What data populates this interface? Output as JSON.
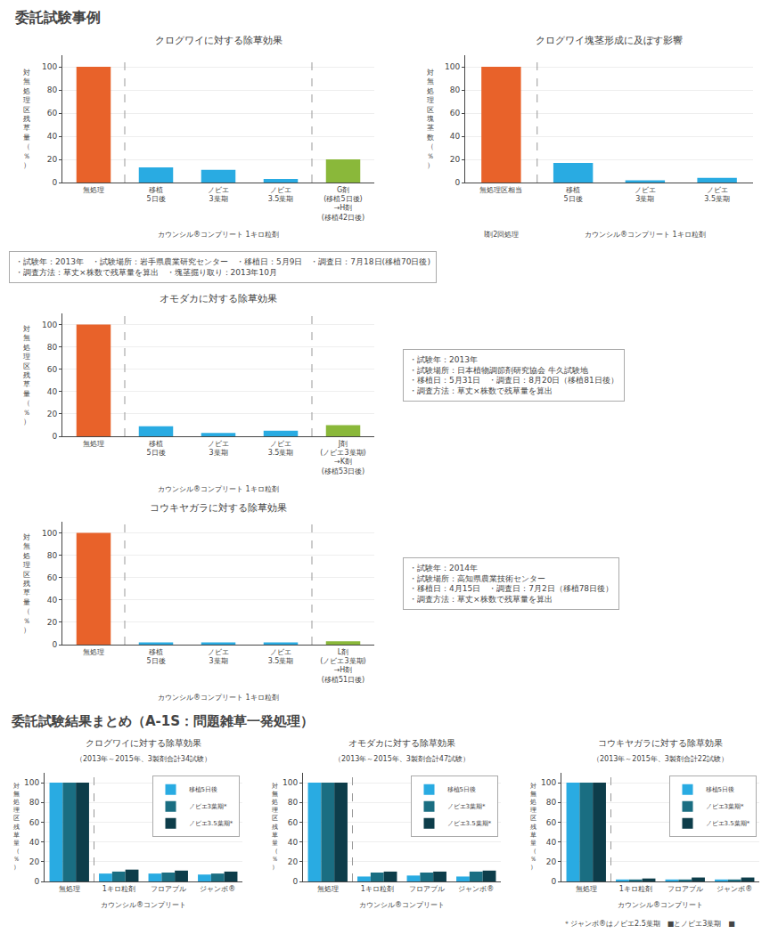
{
  "chart_data": [
    {
      "type": "bar",
      "title": "クログワイに対する除草効果",
      "categories": [
        "無処理",
        "移植\n5日後",
        "ノビエ\n3葉期",
        "ノビエ\n3.5葉期",
        "G剤\n(移植5日後)\n→H剤\n(移植42日後)"
      ],
      "values": [
        100,
        13,
        11,
        3,
        20
      ],
      "colors": [
        "#e8622a",
        "#29abe2",
        "#29abe2",
        "#29abe2",
        "#8ab83a"
      ],
      "ylabel": "対\n無\n処\n理\n区\n残\n草\n量\n（\n％\n）",
      "xlabel": "カウンシル®コンプリート 1キロ粒剤",
      "ylim": [
        0,
        110
      ],
      "yticks": [
        0,
        20,
        40,
        60,
        80,
        100
      ],
      "grid": true,
      "annotations": [
        {
          "text": "委託試験事例"
        }
      ]
    },
    {
      "type": "bar",
      "title": "クログワイ塊茎形成に及ぼす影響",
      "categories": [
        "無処理区相当",
        "移植\n5日後",
        "ノビエ\n3葉期",
        "ノビエ\n3.5葉期"
      ],
      "values": [
        100,
        17,
        2,
        4
      ],
      "colors": [
        "#e8622a",
        "#29abe2",
        "#29abe2",
        "#29abe2"
      ],
      "ylabel": "対\n無\n処\n理\n区\n塊\n茎\n数\n（\n％\n）",
      "ylim": [
        0,
        110
      ],
      "yticks": [
        0,
        20,
        40,
        60,
        80,
        100
      ],
      "grid": true,
      "annotations": [
        {
          "text": "I剤2回処理",
          "x": 0
        },
        {
          "text": "カウンシル®コンプリート 1キロ粒剤",
          "x": 2
        },
        {
          "text": "・試験年：2013年　・試験場所：岩手県農業研究センター　・移植日：5月9日　・調査日：7月18日(移植70日後)\n・調査方法：草丈×株数で残草量を算出　・塊茎掘り取り：2013年10月"
        }
      ]
    },
    {
      "type": "bar",
      "title": "オモダカに対する除草効果",
      "categories": [
        "無処理",
        "移植\n5日後",
        "ノビエ\n3葉期",
        "ノビエ\n3.5葉期",
        "J剤\n(ノビエ3葉期)\n→K剤\n(移植53日後)"
      ],
      "values": [
        100,
        9,
        3,
        5,
        10
      ],
      "colors": [
        "#e8622a",
        "#29abe2",
        "#29abe2",
        "#29abe2",
        "#8ab83a"
      ],
      "ylabel": "対\n無\n処\n理\n区\n残\n草\n量\n（\n％\n）",
      "xlabel": "カウンシル®コンプリート 1キロ粒剤",
      "ylim": [
        0,
        110
      ],
      "yticks": [
        0,
        20,
        40,
        60,
        80,
        100
      ],
      "grid": true,
      "annotations": [
        {
          "text": "・試験年：2013年\n・試験場所：日本植物調節剤研究協会 牛久試験地\n・移植日：5月31日　・調査日：8月20日（移植81日後）\n・調査方法：草丈×株数で残草量を算出"
        }
      ]
    },
    {
      "type": "bar",
      "title": "コウキヤガラに対する除草効果",
      "categories": [
        "無処理",
        "移植\n5日後",
        "ノビエ\n3葉期",
        "ノビエ\n3.5葉期",
        "L剤\n(ノビエ3葉期)\n→H剤\n(移植51日後)"
      ],
      "values": [
        100,
        2,
        2,
        2,
        3
      ],
      "colors": [
        "#e8622a",
        "#29abe2",
        "#29abe2",
        "#29abe2",
        "#8ab83a"
      ],
      "ylabel": "対\n無\n処\n理\n区\n残\n草\n量\n（\n％\n）",
      "xlabel": "カウンシル®コンプリート 1キロ粒剤",
      "ylim": [
        0,
        110
      ],
      "yticks": [
        0,
        20,
        40,
        60,
        80,
        100
      ],
      "grid": true,
      "annotations": [
        {
          "text": "・試験年：2014年\n・試験場所：高知県農業技術センター\n・移植日：4月15日　・調査日：7月2日（移植78日後）\n・調査方法：草丈×株数で残草量を算出"
        }
      ]
    },
    {
      "type": "bar",
      "title": "クログワイに対する除草効果",
      "subtitle": "（2013年～2015年、3製剤合計34試験）",
      "categories": [
        "無処理",
        "1キロ粒剤",
        "フロアブル",
        "ジャンボ®"
      ],
      "series": [
        {
          "name": "移植5日後",
          "color": "#29abe2",
          "values": [
            100,
            8,
            8,
            7
          ]
        },
        {
          "name": "ノビエ3葉期*",
          "color": "#1a6e82",
          "values": [
            100,
            10,
            9,
            8
          ]
        },
        {
          "name": "ノビエ3.5葉期*",
          "color": "#0d3d4a",
          "values": [
            100,
            12,
            11,
            10
          ]
        }
      ],
      "ylabel": "対\n無\n処\n理\n区\n残\n草\n量\n（\n％\n）",
      "xlabel": "カウンシル®コンプリート",
      "ylim": [
        0,
        110
      ],
      "yticks": [
        0,
        20,
        40,
        60,
        80,
        100
      ],
      "grid": true,
      "legend": "upper right",
      "annotations": [
        {
          "text": "委託試験結果まとめ（A-1S：問題雑草一発処理）"
        }
      ]
    },
    {
      "type": "bar",
      "title": "オモダカに対する除草効果",
      "subtitle": "（2013年～2015年、3製剤合計47試験）",
      "categories": [
        "無処理",
        "1キロ粒剤",
        "フロアブル",
        "ジャンボ®"
      ],
      "series": [
        {
          "name": "移植5日後",
          "color": "#29abe2",
          "values": [
            100,
            5,
            6,
            5
          ]
        },
        {
          "name": "ノビエ3葉期*",
          "color": "#1a6e82",
          "values": [
            100,
            9,
            9,
            10
          ]
        },
        {
          "name": "ノビエ3.5葉期*",
          "color": "#0d3d4a",
          "values": [
            100,
            10,
            10,
            11
          ]
        }
      ],
      "ylabel": "対\n無\n処\n理\n区\n残\n草\n量\n（\n％\n）",
      "xlabel": "カウンシル®コンプリート",
      "ylim": [
        0,
        110
      ],
      "yticks": [
        0,
        20,
        40,
        60,
        80,
        100
      ],
      "grid": true,
      "legend": "upper right"
    },
    {
      "type": "bar",
      "title": "コウキヤガラに対する除草効果",
      "subtitle": "（2013年～2015年、3製剤合計22試験）",
      "categories": [
        "無処理",
        "1キロ粒剤",
        "フロアブル",
        "ジャンボ®"
      ],
      "series": [
        {
          "name": "移植5日後",
          "color": "#29abe2",
          "values": [
            100,
            2,
            2,
            2
          ]
        },
        {
          "name": "ノビエ3葉期*",
          "color": "#1a6e82",
          "values": [
            100,
            2,
            2,
            2
          ]
        },
        {
          "name": "ノビエ3.5葉期*",
          "color": "#0d3d4a",
          "values": [
            100,
            3,
            4,
            4
          ]
        }
      ],
      "ylabel": "対\n無\n処\n理\n区\n残\n草\n量\n（\n％\n）",
      "xlabel": "カウンシル®コンプリート",
      "ylim": [
        0,
        110
      ],
      "yticks": [
        0,
        20,
        40,
        60,
        80,
        100
      ],
      "grid": true,
      "legend": "upper right",
      "annotations": [
        {
          "text": "＊ジャンボ®はノビエ2.5葉期　■とノビエ3葉期　■"
        }
      ]
    }
  ]
}
